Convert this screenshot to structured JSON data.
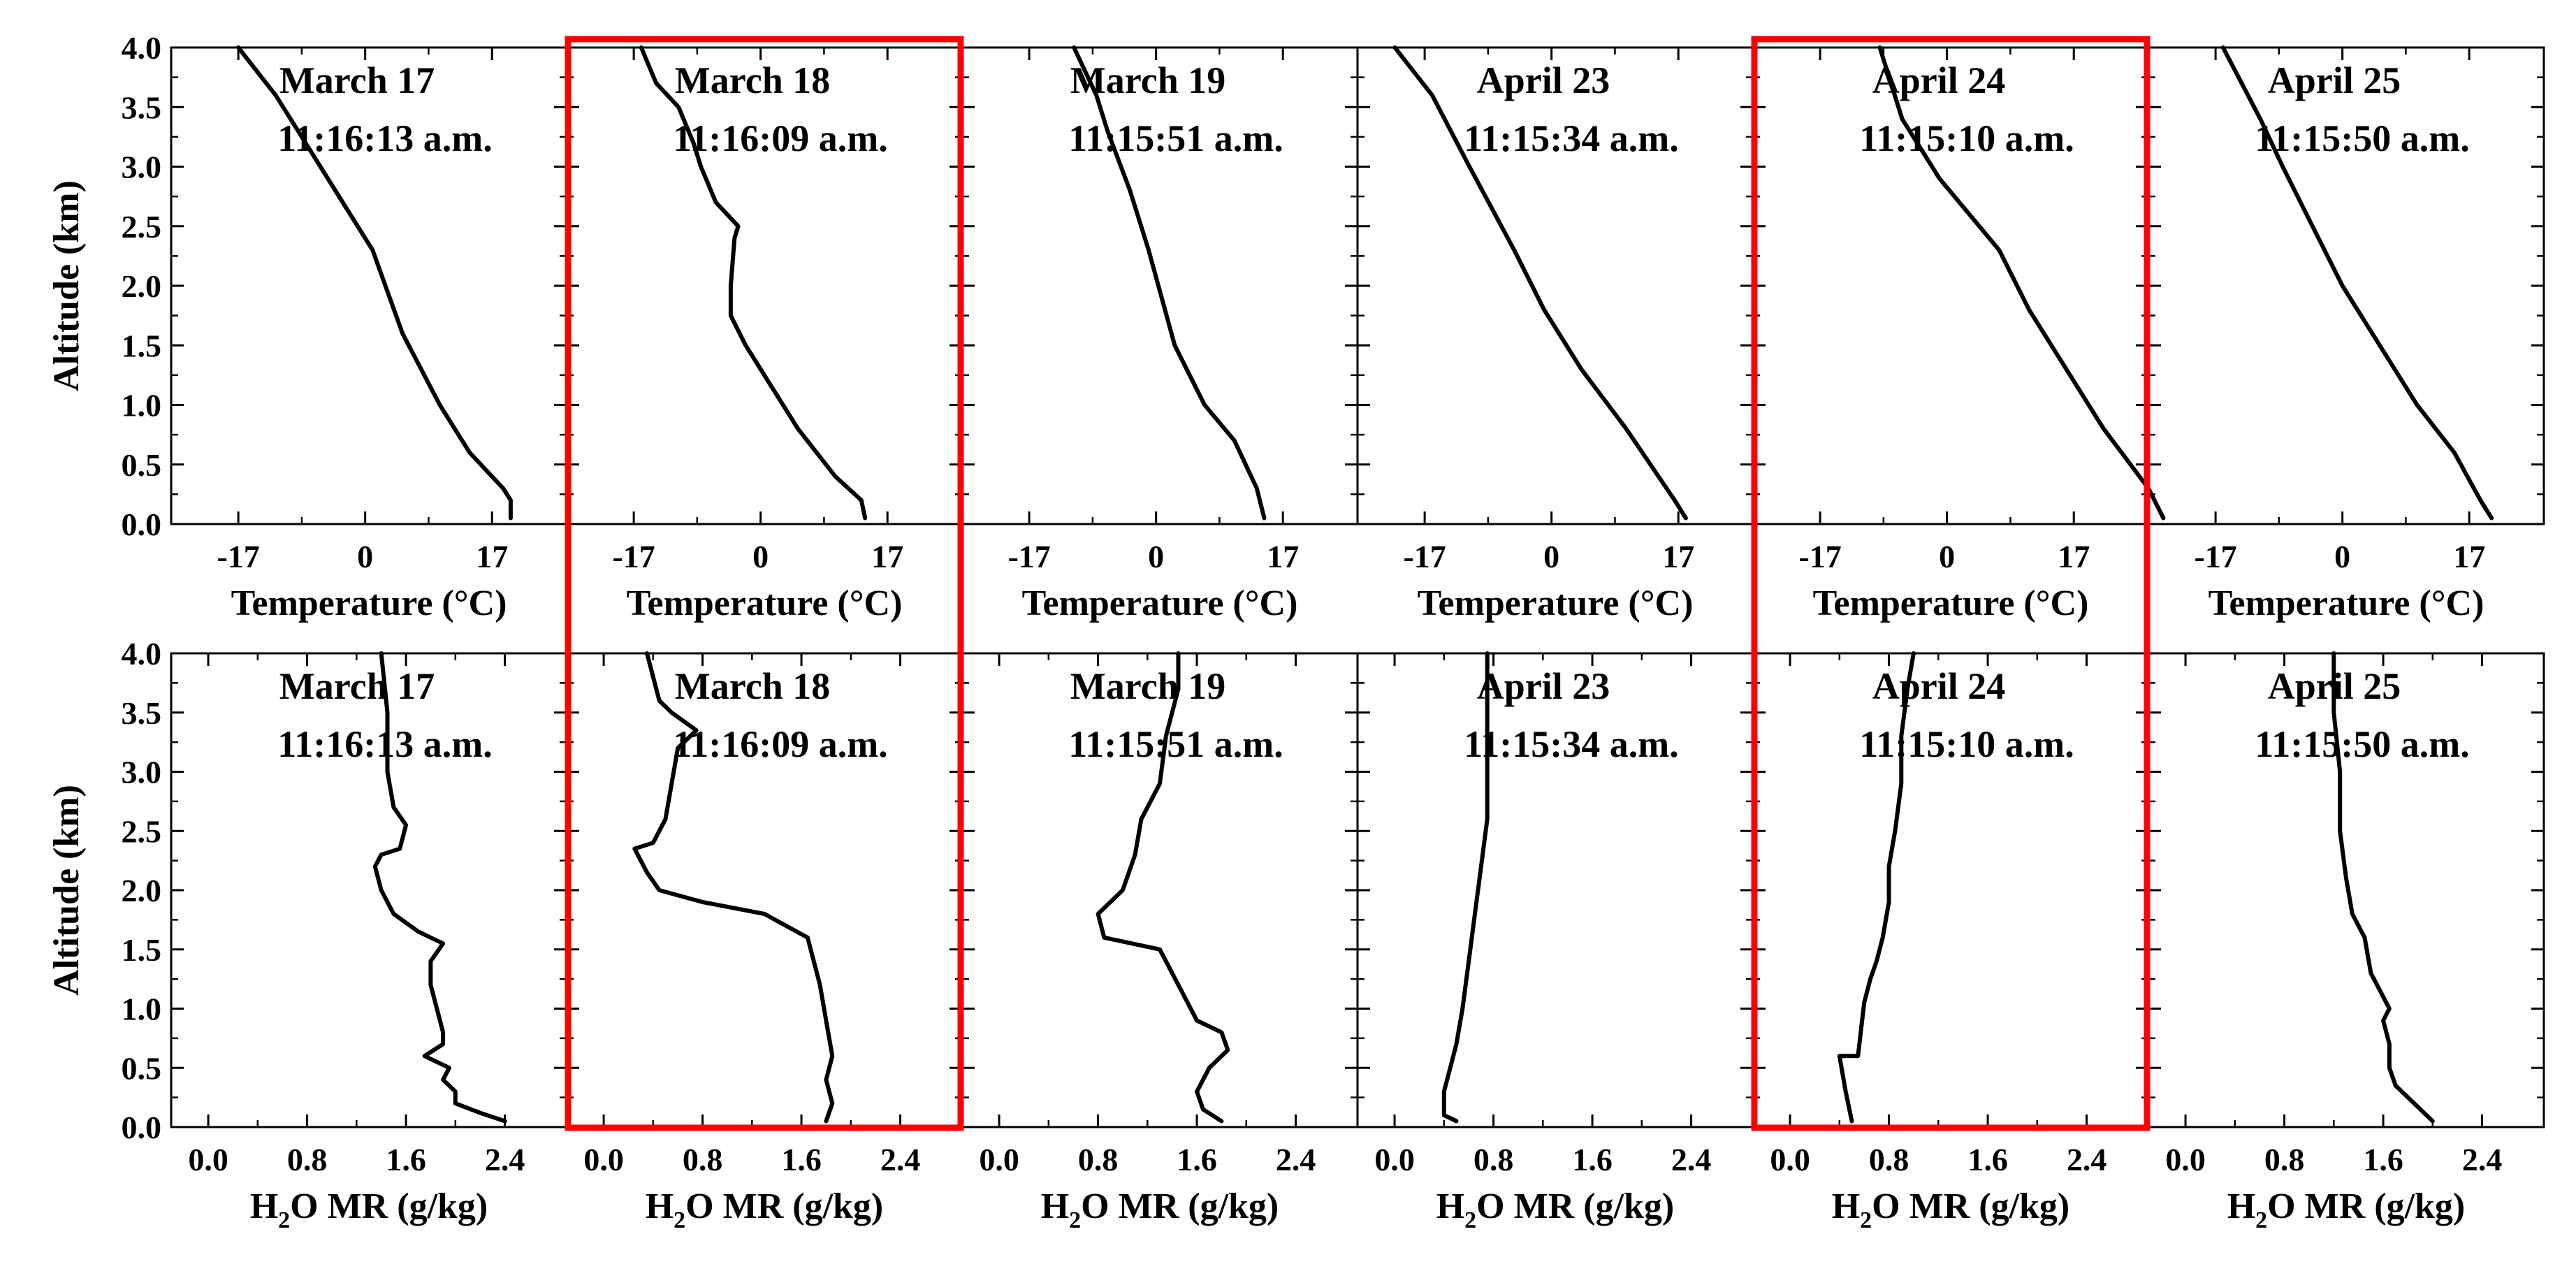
{
  "highlight_color": "#ff0000",
  "chart_data": {
    "type": "line",
    "title": "",
    "panels": [
      {
        "date": "March 17",
        "time": "11:16:13 a.m."
      },
      {
        "date": "March 18",
        "time": "11:16:09 a.m."
      },
      {
        "date": "March 19",
        "time": "11:15:51 a.m."
      },
      {
        "date": "April 23",
        "time": "11:15:34 a.m."
      },
      {
        "date": "April 24",
        "time": "11:15:10 a.m."
      },
      {
        "date": "April 25",
        "time": "11:15:50 a.m."
      }
    ],
    "highlighted_panels": [
      1,
      4
    ],
    "ylabel": "Altitude (km)",
    "ylim": [
      0,
      4
    ],
    "yticks": [
      "0.0",
      "0.5",
      "1.0",
      "1.5",
      "2.0",
      "2.5",
      "3.0",
      "3.5",
      "4.0"
    ],
    "temperature": {
      "xlabel": "Temperature (°C)",
      "xlim": [
        -26,
        27
      ],
      "xticks": [
        -17,
        0,
        17
      ],
      "xtick_labels": [
        "-17",
        "0",
        "17"
      ],
      "series": [
        {
          "name": "March 17",
          "points": [
            [
              19.5,
              0.05
            ],
            [
              19.5,
              0.2
            ],
            [
              18.5,
              0.3
            ],
            [
              14,
              0.6
            ],
            [
              10,
              1.0
            ],
            [
              5,
              1.6
            ],
            [
              1,
              2.3
            ],
            [
              -4,
              2.8
            ],
            [
              -10,
              3.4
            ],
            [
              -12,
              3.6
            ],
            [
              -17,
              4.0
            ]
          ]
        },
        {
          "name": "March 18",
          "points": [
            [
              14,
              0.05
            ],
            [
              13.5,
              0.2
            ],
            [
              10,
              0.4
            ],
            [
              5,
              0.8
            ],
            [
              1,
              1.2
            ],
            [
              -2,
              1.5
            ],
            [
              -4,
              1.75
            ],
            [
              -4,
              2.0
            ],
            [
              -3.5,
              2.4
            ],
            [
              -3,
              2.5
            ],
            [
              -6,
              2.7
            ],
            [
              -8,
              3.0
            ],
            [
              -9,
              3.2
            ],
            [
              -11,
              3.5
            ],
            [
              -14,
              3.7
            ],
            [
              -16,
              4.0
            ]
          ]
        },
        {
          "name": "March 19",
          "points": [
            [
              14.5,
              0.05
            ],
            [
              13.5,
              0.3
            ],
            [
              10.5,
              0.7
            ],
            [
              6.5,
              1.0
            ],
            [
              2.5,
              1.5
            ],
            [
              -1,
              2.3
            ],
            [
              -3.5,
              2.8
            ],
            [
              -6.5,
              3.3
            ],
            [
              -8,
              3.6
            ],
            [
              -11,
              4.0
            ]
          ]
        },
        {
          "name": "April 23",
          "points": [
            [
              18,
              0.05
            ],
            [
              16.5,
              0.2
            ],
            [
              10,
              0.8
            ],
            [
              4,
              1.3
            ],
            [
              -1,
              1.8
            ],
            [
              -5,
              2.3
            ],
            [
              -11,
              3.0
            ],
            [
              -16,
              3.6
            ],
            [
              -21,
              4.0
            ]
          ]
        },
        {
          "name": "April 24",
          "points": [
            [
              29,
              0.05
            ],
            [
              27,
              0.3
            ],
            [
              21,
              0.8
            ],
            [
              16,
              1.3
            ],
            [
              11,
              1.8
            ],
            [
              7,
              2.3
            ],
            [
              3,
              2.6
            ],
            [
              -1,
              2.9
            ],
            [
              -3,
              3.1
            ],
            [
              -6,
              3.4
            ],
            [
              -7,
              3.6
            ],
            [
              -9,
              4.0
            ]
          ]
        },
        {
          "name": "April 25",
          "points": [
            [
              20,
              0.05
            ],
            [
              18.5,
              0.2
            ],
            [
              15,
              0.6
            ],
            [
              10,
              1.0
            ],
            [
              5,
              1.5
            ],
            [
              0,
              2.0
            ],
            [
              -4,
              2.5
            ],
            [
              -8,
              3.0
            ],
            [
              -11,
              3.4
            ],
            [
              -16,
              4.0
            ]
          ]
        }
      ]
    },
    "water_vapor": {
      "xlabel_main": "H",
      "xlabel_sub": "2",
      "xlabel_rest": "O MR (g/kg)",
      "xlim": [
        -0.3,
        2.9
      ],
      "xticks": [
        0.0,
        0.8,
        1.6,
        2.4
      ],
      "xtick_labels": [
        "0.0",
        "0.8",
        "1.6",
        "2.4"
      ],
      "series": [
        {
          "name": "March 17",
          "points": [
            [
              2.4,
              0.05
            ],
            [
              2.2,
              0.12
            ],
            [
              2.0,
              0.2
            ],
            [
              2.0,
              0.3
            ],
            [
              1.9,
              0.4
            ],
            [
              1.95,
              0.5
            ],
            [
              1.75,
              0.6
            ],
            [
              1.9,
              0.7
            ],
            [
              1.9,
              0.8
            ],
            [
              1.85,
              1.0
            ],
            [
              1.8,
              1.2
            ],
            [
              1.8,
              1.4
            ],
            [
              1.9,
              1.55
            ],
            [
              1.7,
              1.65
            ],
            [
              1.5,
              1.8
            ],
            [
              1.4,
              2.0
            ],
            [
              1.35,
              2.2
            ],
            [
              1.4,
              2.3
            ],
            [
              1.55,
              2.35
            ],
            [
              1.6,
              2.55
            ],
            [
              1.5,
              2.7
            ],
            [
              1.45,
              3.0
            ],
            [
              1.45,
              3.5
            ],
            [
              1.4,
              4.0
            ]
          ]
        },
        {
          "name": "March 18",
          "points": [
            [
              1.8,
              0.05
            ],
            [
              1.85,
              0.2
            ],
            [
              1.8,
              0.4
            ],
            [
              1.85,
              0.6
            ],
            [
              1.8,
              0.9
            ],
            [
              1.75,
              1.2
            ],
            [
              1.65,
              1.6
            ],
            [
              1.3,
              1.8
            ],
            [
              0.8,
              1.9
            ],
            [
              0.45,
              2.0
            ],
            [
              0.35,
              2.15
            ],
            [
              0.25,
              2.35
            ],
            [
              0.4,
              2.4
            ],
            [
              0.5,
              2.6
            ],
            [
              0.55,
              2.9
            ],
            [
              0.6,
              3.2
            ],
            [
              0.75,
              3.35
            ],
            [
              0.55,
              3.5
            ],
            [
              0.45,
              3.6
            ],
            [
              0.35,
              4.0
            ]
          ]
        },
        {
          "name": "March 19",
          "points": [
            [
              1.8,
              0.05
            ],
            [
              1.65,
              0.15
            ],
            [
              1.6,
              0.3
            ],
            [
              1.7,
              0.5
            ],
            [
              1.85,
              0.65
            ],
            [
              1.8,
              0.8
            ],
            [
              1.6,
              0.9
            ],
            [
              1.5,
              1.1
            ],
            [
              1.4,
              1.3
            ],
            [
              1.3,
              1.5
            ],
            [
              0.85,
              1.6
            ],
            [
              0.8,
              1.8
            ],
            [
              1.0,
              2.0
            ],
            [
              1.1,
              2.3
            ],
            [
              1.15,
              2.6
            ],
            [
              1.3,
              2.9
            ],
            [
              1.35,
              3.3
            ],
            [
              1.45,
              3.7
            ],
            [
              1.45,
              4.0
            ]
          ]
        },
        {
          "name": "April 23",
          "points": [
            [
              0.5,
              0.05
            ],
            [
              0.4,
              0.1
            ],
            [
              0.4,
              0.3
            ],
            [
              0.45,
              0.5
            ],
            [
              0.5,
              0.7
            ],
            [
              0.55,
              1.0
            ],
            [
              0.6,
              1.4
            ],
            [
              0.65,
              1.8
            ],
            [
              0.7,
              2.2
            ],
            [
              0.75,
              2.6
            ],
            [
              0.75,
              3.0
            ],
            [
              0.75,
              3.5
            ],
            [
              0.75,
              4.0
            ]
          ]
        },
        {
          "name": "April 24",
          "points": [
            [
              0.5,
              0.05
            ],
            [
              0.45,
              0.3
            ],
            [
              0.4,
              0.6
            ],
            [
              0.55,
              0.6
            ],
            [
              0.6,
              1.05
            ],
            [
              0.65,
              1.25
            ],
            [
              0.7,
              1.4
            ],
            [
              0.75,
              1.6
            ],
            [
              0.8,
              1.9
            ],
            [
              0.8,
              2.2
            ],
            [
              0.85,
              2.5
            ],
            [
              0.9,
              2.9
            ],
            [
              0.9,
              3.3
            ],
            [
              0.95,
              3.7
            ],
            [
              1.0,
              4.0
            ]
          ]
        },
        {
          "name": "April 25",
          "points": [
            [
              2.0,
              0.05
            ],
            [
              1.85,
              0.2
            ],
            [
              1.7,
              0.35
            ],
            [
              1.65,
              0.5
            ],
            [
              1.65,
              0.7
            ],
            [
              1.6,
              0.9
            ],
            [
              1.65,
              1.0
            ],
            [
              1.5,
              1.3
            ],
            [
              1.45,
              1.6
            ],
            [
              1.35,
              1.8
            ],
            [
              1.3,
              2.1
            ],
            [
              1.25,
              2.5
            ],
            [
              1.25,
              3.0
            ],
            [
              1.2,
              3.5
            ],
            [
              1.2,
              4.0
            ]
          ]
        }
      ]
    }
  }
}
